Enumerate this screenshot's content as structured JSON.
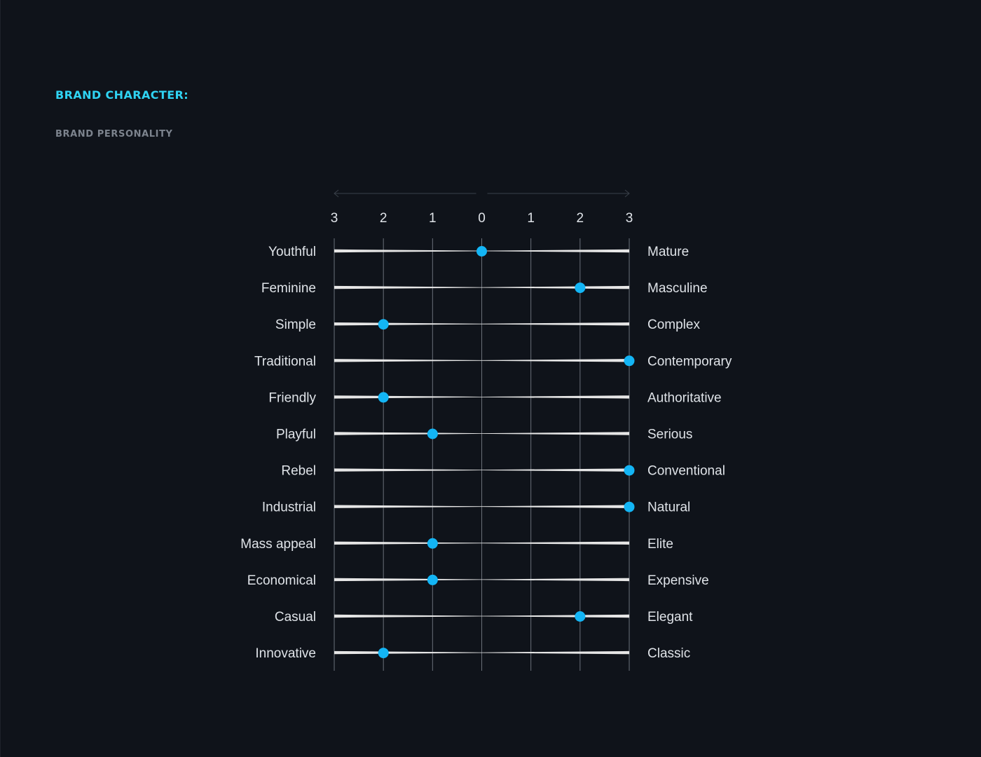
{
  "header": {
    "title": "BRAND CHARACTER:",
    "subtitle": "BRAND PERSONALITY"
  },
  "colors": {
    "background": "#0f131a",
    "title": "#2fd3f2",
    "subtitle": "#7c838d",
    "text": "#dfe3e8",
    "track": "#e6e6e6",
    "grid": "#8a9099",
    "marker": "#13b5f5"
  },
  "chart_data": {
    "type": "scatter",
    "title": "BRAND PERSONALITY",
    "axis": {
      "ticks": [
        -3,
        -2,
        -1,
        0,
        1,
        2,
        3
      ],
      "tick_labels": [
        "3",
        "2",
        "1",
        "0",
        "1",
        "2",
        "3"
      ],
      "range": [
        -3,
        3
      ],
      "grid": true
    },
    "rows": [
      {
        "left": "Youthful",
        "right": "Mature",
        "value": 0
      },
      {
        "left": "Feminine",
        "right": "Masculine",
        "value": 2
      },
      {
        "left": "Simple",
        "right": "Complex",
        "value": -2
      },
      {
        "left": "Traditional",
        "right": "Contemporary",
        "value": 3
      },
      {
        "left": "Friendly",
        "right": "Authoritative",
        "value": -2
      },
      {
        "left": "Playful",
        "right": "Serious",
        "value": -1
      },
      {
        "left": "Rebel",
        "right": "Conventional",
        "value": 3
      },
      {
        "left": "Industrial",
        "right": "Natural",
        "value": 3
      },
      {
        "left": "Mass appeal",
        "right": "Elite",
        "value": -1
      },
      {
        "left": "Economical",
        "right": "Expensive",
        "value": -1
      },
      {
        "left": "Casual",
        "right": "Elegant",
        "value": 2
      },
      {
        "left": "Innovative",
        "right": "Classic",
        "value": -2
      }
    ]
  }
}
